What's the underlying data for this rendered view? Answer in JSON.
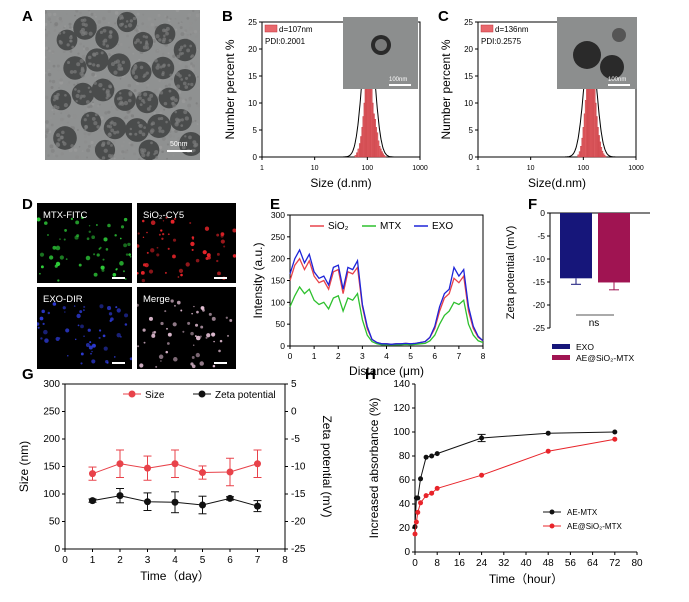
{
  "panel_letters": [
    "A",
    "B",
    "C",
    "D",
    "E",
    "F",
    "G",
    "H"
  ],
  "micrographs": {
    "a": {
      "scale": "50nm"
    },
    "b_inset": {
      "scale": "100nm"
    },
    "c_inset": {
      "scale": "100nm"
    }
  },
  "fluorescence": {
    "labels": [
      "MTX-FITC",
      "SiO₂-CY5",
      "EXO-DIR",
      "Merge"
    ],
    "colors": [
      "#2fd13a",
      "#e8242a",
      "#2e3bd8",
      "#e7c2d8"
    ]
  },
  "chart_data": [
    {
      "id": "B",
      "type": "histogram",
      "xscale": "log",
      "xlim": [
        1,
        1000
      ],
      "xticks": [
        "1",
        "10",
        "100",
        "1000"
      ],
      "ylim": [
        0,
        25
      ],
      "yticks": [
        "0",
        "5",
        "10",
        "15",
        "20",
        "25"
      ],
      "xlabel": "Size (d.nm)",
      "ylabel": "Number percent %",
      "legend": "d=107nm",
      "pdi": "PDI:0.2001",
      "bins_x": [
        58,
        62,
        66,
        70,
        74,
        78,
        82,
        86,
        90,
        94,
        98,
        103,
        108,
        113,
        118,
        124,
        130,
        137,
        144,
        151,
        159,
        167,
        176,
        185,
        195,
        205,
        216
      ],
      "bins_y": [
        0.3,
        0.8,
        1.5,
        2.5,
        3.8,
        5.5,
        7.5,
        10,
        13,
        17,
        21,
        24,
        21,
        17,
        13,
        10,
        8,
        7,
        5.5,
        4.5,
        3,
        2,
        1.5,
        1,
        0.6,
        0.3,
        0.1
      ],
      "fit_center": 105,
      "fit_sigma": 0.12,
      "fit_peak": 24
    },
    {
      "id": "C",
      "type": "histogram",
      "xscale": "log",
      "xlim": [
        1,
        1000
      ],
      "xticks": [
        "1",
        "10",
        "100",
        "1000"
      ],
      "ylim": [
        0,
        25
      ],
      "yticks": [
        "0",
        "5",
        "10",
        "15",
        "20",
        "25"
      ],
      "xlabel": "Size(d.nm)",
      "ylabel": "Number percent %",
      "legend": "d=136nm",
      "pdi": "PDI:0.2575",
      "bins_x": [
        78,
        83,
        88,
        93,
        98,
        103,
        108,
        114,
        120,
        126,
        132,
        139,
        146,
        153,
        160,
        168,
        176,
        185,
        194,
        204,
        214,
        225,
        236,
        248,
        260
      ],
      "bins_y": [
        0.4,
        1,
        2,
        3.5,
        5.5,
        8,
        10.5,
        13,
        15.5,
        18,
        20.5,
        21.5,
        19,
        16,
        13,
        10,
        7.5,
        5.5,
        4,
        2.8,
        1.8,
        1.1,
        0.6,
        0.3,
        0.1
      ],
      "fit_center": 135,
      "fit_sigma": 0.12,
      "fit_peak": 21.5
    },
    {
      "id": "E",
      "type": "line",
      "xlim": [
        0,
        8
      ],
      "ylim": [
        0,
        300
      ],
      "xticks": [
        "0",
        "1",
        "2",
        "3",
        "4",
        "5",
        "6",
        "7",
        "8"
      ],
      "yticks": [
        "0",
        "50",
        "100",
        "150",
        "200",
        "250",
        "300"
      ],
      "xlabel": "Distance (μm)",
      "ylabel": "Intensity (a.u.)",
      "x": [
        0,
        0.2,
        0.4,
        0.6,
        0.8,
        1.0,
        1.2,
        1.4,
        1.6,
        1.8,
        2.0,
        2.2,
        2.4,
        2.6,
        2.8,
        3.0,
        3.2,
        3.4,
        3.6,
        3.8,
        4.0,
        4.2,
        4.4,
        4.6,
        4.8,
        5.0,
        5.2,
        5.4,
        5.6,
        5.8,
        6.0,
        6.2,
        6.4,
        6.6,
        6.8,
        7.0,
        7.2,
        7.4,
        7.6,
        7.8,
        8.0
      ],
      "series": [
        {
          "name": "SiO₂",
          "color": "#e8424a",
          "values": [
            150,
            185,
            200,
            175,
            195,
            160,
            145,
            150,
            130,
            170,
            175,
            120,
            170,
            165,
            180,
            90,
            40,
            15,
            8,
            5,
            5,
            4,
            5,
            5,
            6,
            5,
            6,
            8,
            10,
            20,
            40,
            80,
            110,
            120,
            155,
            145,
            160,
            80,
            40,
            20,
            12
          ]
        },
        {
          "name": "MTX",
          "color": "#2ec02e",
          "values": [
            90,
            115,
            135,
            120,
            130,
            105,
            95,
            100,
            85,
            110,
            115,
            80,
            110,
            105,
            120,
            60,
            25,
            10,
            5,
            3,
            3,
            3,
            3,
            3,
            4,
            3,
            4,
            5,
            6,
            12,
            25,
            50,
            70,
            80,
            100,
            95,
            105,
            50,
            25,
            12,
            8
          ]
        },
        {
          "name": "EXO",
          "color": "#1e24d8",
          "values": [
            165,
            200,
            220,
            190,
            210,
            170,
            155,
            160,
            140,
            180,
            185,
            130,
            180,
            175,
            195,
            95,
            45,
            15,
            8,
            5,
            5,
            4,
            5,
            5,
            6,
            5,
            6,
            8,
            10,
            20,
            45,
            90,
            120,
            130,
            180,
            160,
            175,
            90,
            45,
            22,
            12
          ]
        }
      ]
    },
    {
      "id": "F",
      "type": "bar",
      "ylim": [
        -25,
        0
      ],
      "yticks": [
        "-25",
        "-20",
        "-15",
        "-10",
        "-5",
        "0"
      ],
      "ylabel": "Zeta potential (mV)",
      "categories": [
        "EXO",
        "AE@SiO₂-MTX"
      ],
      "values": [
        -14.2,
        -15.1
      ],
      "errors": [
        1.3,
        1.6
      ],
      "colors": [
        "#16167a",
        "#a01452"
      ],
      "annotation": "ns"
    },
    {
      "id": "G",
      "type": "line",
      "xlim": [
        0,
        8
      ],
      "xticks": [
        "0",
        "1",
        "2",
        "3",
        "4",
        "5",
        "6",
        "7",
        "8"
      ],
      "xlabel": "Time（day）",
      "ylim": [
        0,
        300
      ],
      "yticks": [
        "0",
        "50",
        "100",
        "150",
        "200",
        "250",
        "300"
      ],
      "ylabel": "Size (nm)",
      "y2lim": [
        -25,
        5
      ],
      "y2ticks": [
        "-25",
        "-20",
        "-15",
        "-10",
        "-5",
        "0",
        "5"
      ],
      "y2label": "Zeta potential (mV)",
      "series": [
        {
          "name": "Size",
          "axis": "left",
          "color": "#e8424a",
          "x": [
            1,
            2,
            3,
            4,
            5,
            6,
            7
          ],
          "values": [
            137,
            155,
            147,
            155,
            139,
            140,
            155
          ],
          "errors": [
            12,
            25,
            22,
            25,
            12,
            25,
            25
          ]
        },
        {
          "name": "Zeta potential",
          "axis": "right",
          "color": "#111111",
          "x": [
            1,
            2,
            3,
            4,
            5,
            6,
            7
          ],
          "values": [
            -16.2,
            -15.3,
            -16.4,
            -16.5,
            -17.0,
            -15.8,
            -17.2
          ],
          "errors": [
            0.3,
            1.3,
            1.6,
            1.9,
            1.6,
            0.3,
            1.0
          ]
        }
      ]
    },
    {
      "id": "H",
      "type": "line",
      "xlim": [
        0,
        80
      ],
      "xticks": [
        "0",
        "8",
        "16",
        "24",
        "32",
        "40",
        "48",
        "56",
        "64",
        "72",
        "80"
      ],
      "xlabel": "Time（hour）",
      "ylim": [
        0,
        140
      ],
      "yticks": [
        "0",
        "20",
        "40",
        "60",
        "80",
        "100",
        "120",
        "140"
      ],
      "ylabel": "Increased absorbance (%)",
      "series": [
        {
          "name": "AE-MTX",
          "color": "#111111",
          "x": [
            0,
            0.5,
            1,
            2,
            4,
            6,
            8,
            24,
            48,
            72
          ],
          "values": [
            21,
            45,
            45,
            61,
            79,
            80,
            82,
            95,
            99,
            100
          ],
          "errors": [
            0,
            0,
            0,
            0,
            0,
            0,
            0,
            3,
            0,
            0
          ]
        },
        {
          "name": "AE@SiO₂-MTX",
          "color": "#e8242a",
          "x": [
            0,
            0.5,
            1,
            2,
            4,
            6,
            8,
            24,
            48,
            72
          ],
          "values": [
            15,
            25,
            33,
            41,
            47,
            49,
            53,
            64,
            84,
            94
          ],
          "errors": [
            0,
            0,
            0,
            0,
            0,
            0,
            0,
            0,
            0,
            0
          ]
        }
      ]
    }
  ]
}
